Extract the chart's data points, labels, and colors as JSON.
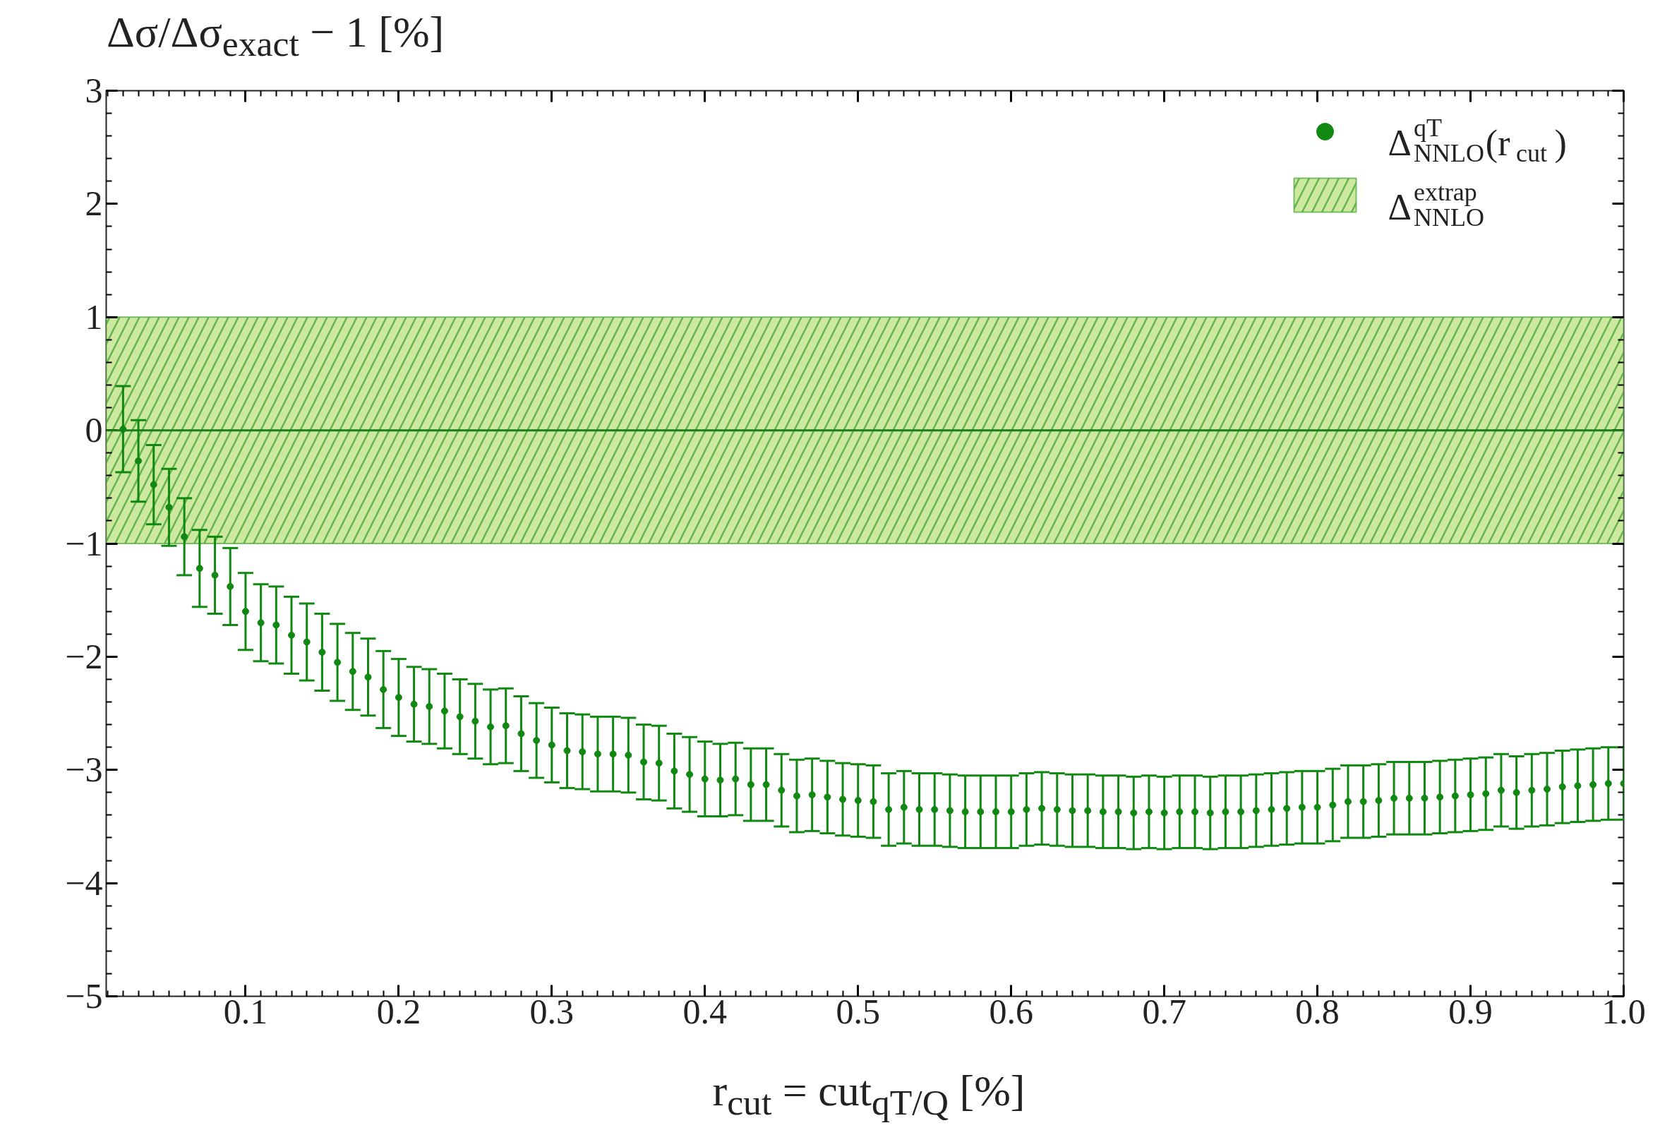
{
  "chart_data": {
    "type": "scatter",
    "ylabel": "Δσ/Δσ$_{exact}$ − 1 [%]",
    "xlabel": "r$_{cut}$ = cut$_{qT/Q}$ [%]",
    "x": [
      0.02,
      0.03,
      0.04,
      0.05,
      0.06,
      0.07,
      0.08,
      0.09,
      0.1,
      0.11,
      0.12,
      0.13,
      0.14,
      0.15,
      0.16,
      0.17,
      0.18,
      0.19,
      0.2,
      0.21,
      0.22,
      0.23,
      0.24,
      0.25,
      0.26,
      0.27,
      0.28,
      0.29,
      0.3,
      0.31,
      0.32,
      0.33,
      0.34,
      0.35,
      0.36,
      0.37,
      0.38,
      0.39,
      0.4,
      0.41,
      0.42,
      0.43,
      0.44,
      0.45,
      0.46,
      0.47,
      0.48,
      0.49,
      0.5,
      0.51,
      0.52,
      0.53,
      0.54,
      0.55,
      0.56,
      0.57,
      0.58,
      0.59,
      0.6,
      0.61,
      0.62,
      0.63,
      0.64,
      0.65,
      0.66,
      0.67,
      0.68,
      0.69,
      0.7,
      0.71,
      0.72,
      0.73,
      0.74,
      0.75,
      0.76,
      0.77,
      0.78,
      0.79,
      0.8,
      0.81,
      0.82,
      0.83,
      0.84,
      0.85,
      0.86,
      0.87,
      0.88,
      0.89,
      0.9,
      0.91,
      0.92,
      0.93,
      0.94,
      0.95,
      0.96,
      0.97,
      0.98,
      0.99,
      1.0
    ],
    "series": [
      {
        "name": "Δ$^{qT}$$_{NNLO}$(r$_{cut}$)",
        "color": "#118811",
        "values": [
          0.01,
          -0.27,
          -0.48,
          -0.68,
          -0.94,
          -1.22,
          -1.28,
          -1.38,
          -1.6,
          -1.7,
          -1.72,
          -1.81,
          -1.87,
          -1.96,
          -2.05,
          -2.13,
          -2.18,
          -2.29,
          -2.36,
          -2.42,
          -2.44,
          -2.48,
          -2.53,
          -2.57,
          -2.62,
          -2.61,
          -2.68,
          -2.74,
          -2.78,
          -2.83,
          -2.84,
          -2.86,
          -2.86,
          -2.87,
          -2.93,
          -2.94,
          -3.01,
          -3.04,
          -3.08,
          -3.09,
          -3.08,
          -3.13,
          -3.13,
          -3.18,
          -3.23,
          -3.22,
          -3.24,
          -3.26,
          -3.27,
          -3.28,
          -3.35,
          -3.33,
          -3.35,
          -3.35,
          -3.36,
          -3.37,
          -3.37,
          -3.37,
          -3.37,
          -3.35,
          -3.34,
          -3.35,
          -3.36,
          -3.36,
          -3.37,
          -3.37,
          -3.38,
          -3.37,
          -3.38,
          -3.37,
          -3.37,
          -3.38,
          -3.37,
          -3.37,
          -3.36,
          -3.35,
          -3.34,
          -3.33,
          -3.33,
          -3.31,
          -3.28,
          -3.28,
          -3.27,
          -3.25,
          -3.25,
          -3.25,
          -3.24,
          -3.23,
          -3.22,
          -3.21,
          -3.18,
          -3.2,
          -3.18,
          -3.17,
          -3.15,
          -3.14,
          -3.13,
          -3.12,
          -3.12
        ],
        "errors": [
          0.38,
          0.36,
          0.35,
          0.34,
          0.34,
          0.34,
          0.34,
          0.34,
          0.34,
          0.34,
          0.34,
          0.34,
          0.34,
          0.34,
          0.34,
          0.34,
          0.34,
          0.34,
          0.34,
          0.33,
          0.33,
          0.33,
          0.33,
          0.33,
          0.33,
          0.33,
          0.33,
          0.33,
          0.33,
          0.33,
          0.33,
          0.33,
          0.33,
          0.33,
          0.33,
          0.33,
          0.33,
          0.33,
          0.33,
          0.32,
          0.32,
          0.32,
          0.32,
          0.32,
          0.32,
          0.32,
          0.32,
          0.32,
          0.32,
          0.32,
          0.32,
          0.32,
          0.32,
          0.32,
          0.32,
          0.32,
          0.32,
          0.32,
          0.32,
          0.32,
          0.32,
          0.32,
          0.32,
          0.32,
          0.32,
          0.32,
          0.32,
          0.32,
          0.32,
          0.32,
          0.32,
          0.32,
          0.32,
          0.32,
          0.32,
          0.32,
          0.32,
          0.32,
          0.32,
          0.32,
          0.32,
          0.32,
          0.32,
          0.32,
          0.32,
          0.32,
          0.32,
          0.32,
          0.32,
          0.32,
          0.32,
          0.32,
          0.32,
          0.32,
          0.32,
          0.32,
          0.32,
          0.32,
          0.32
        ]
      }
    ],
    "bands": [
      {
        "axis": "y",
        "from": -1,
        "to": 1,
        "label": "Δ$^{extrap}$$_{NNLO}$",
        "color": "#cde9a0"
      }
    ],
    "ref_lines": [
      {
        "axis": "y",
        "value": 0,
        "color": "#1a7f1a"
      }
    ],
    "xlim": [
      0.009,
      1.0
    ],
    "xticks": [
      0.1,
      0.2,
      0.3,
      0.4,
      0.5,
      0.6,
      0.7,
      0.8,
      0.9,
      {
        "value": 1.0,
        "label": "1.0"
      }
    ],
    "ylim": [
      -5,
      3
    ],
    "yticks": [
      {
        "value": -5,
        "label": "−5"
      },
      {
        "value": -4,
        "label": "−4"
      },
      {
        "value": -3,
        "label": "−3"
      },
      {
        "value": -2,
        "label": "−2"
      },
      {
        "value": -1,
        "label": "−1"
      },
      0,
      1,
      2,
      3
    ],
    "legend": "top right",
    "marker": "circle",
    "grid": false
  }
}
